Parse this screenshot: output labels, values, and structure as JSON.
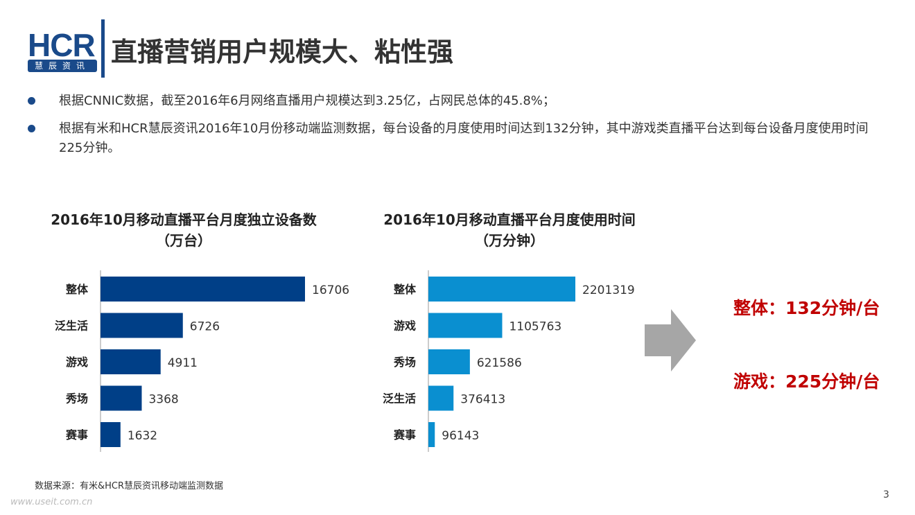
{
  "logo": {
    "text": "HCR",
    "sub": "慧辰资讯"
  },
  "title": "直播营销用户规模大、粘性强",
  "bullets": [
    "根据CNNIC数据，截至2016年6月网络直播用户规模达到3.25亿，占网民总体的45.8%；",
    "根据有米和HCR慧辰资讯2016年10月份移动端监测数据，每台设备的月度使用时间达到132分钟，其中游戏类直播平台达到每台设备月度使用时间225分钟。"
  ],
  "chart_data": [
    {
      "type": "bar",
      "orientation": "horizontal",
      "title": "2016年10月移动直播平台月度独立设备数",
      "subtitle": "（万台）",
      "categories": [
        "整体",
        "泛生活",
        "游戏",
        "秀场",
        "赛事"
      ],
      "values": [
        16706,
        6726,
        4911,
        3368,
        1632
      ],
      "color": "#003f87"
    },
    {
      "type": "bar",
      "orientation": "horizontal",
      "title": "2016年10月移动直播平台月度使用时间",
      "subtitle": "（万分钟）",
      "categories": [
        "整体",
        "游戏",
        "秀场",
        "泛生活",
        "赛事"
      ],
      "values": [
        2201319,
        1105763,
        621586,
        376413,
        96143
      ],
      "color": "#0a8fd0"
    }
  ],
  "arrow_icon": "right-arrow-icon",
  "callouts": [
    "整体：132分钟/台",
    "游戏：225分钟/台"
  ],
  "source": "数据来源：有米&HCR慧辰资讯移动端监测数据",
  "watermark": "www.useit.com.cn",
  "page_number": "3"
}
